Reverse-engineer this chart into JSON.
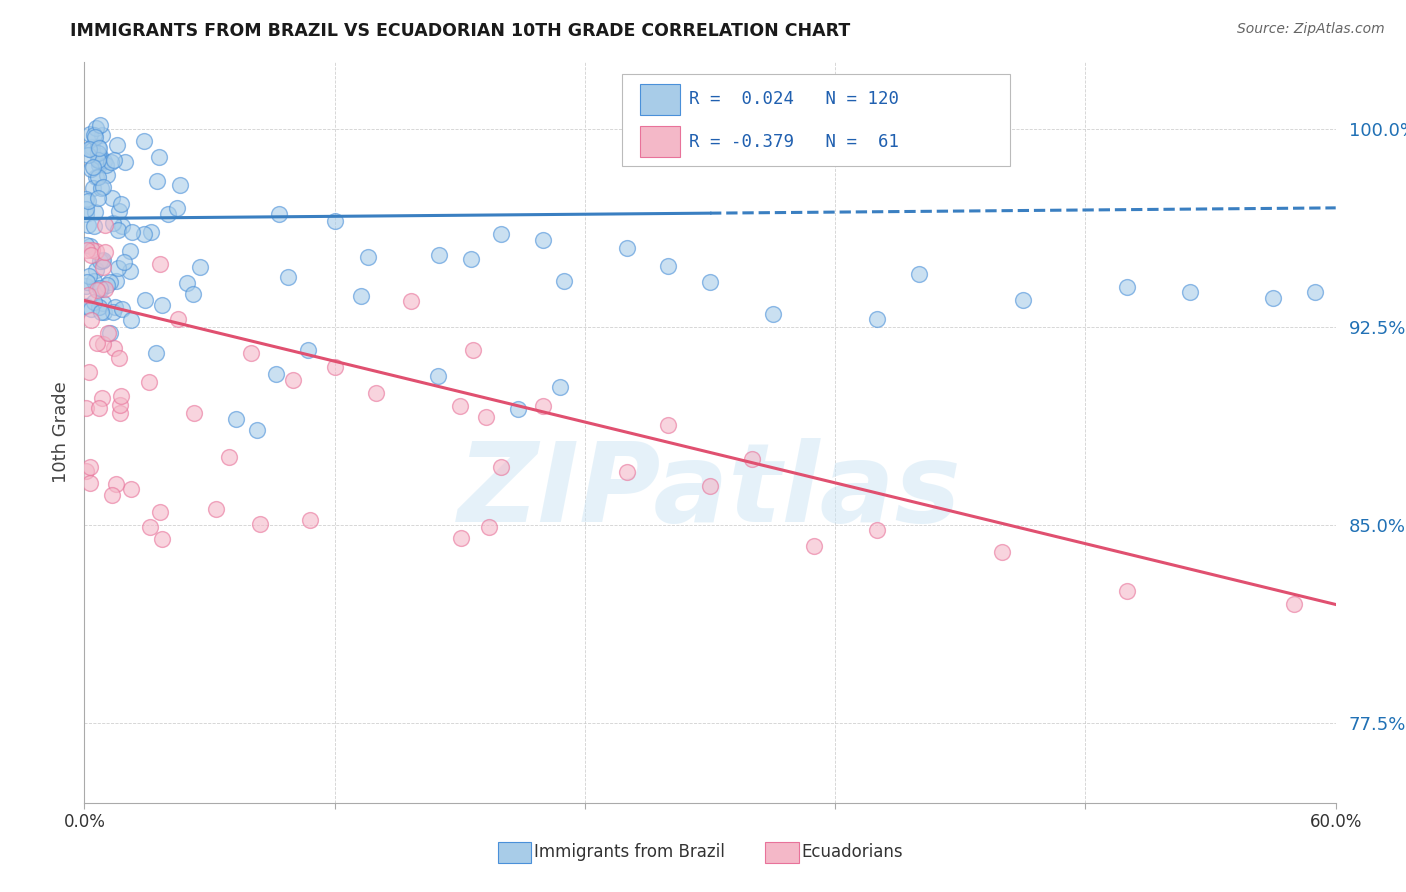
{
  "title": "IMMIGRANTS FROM BRAZIL VS ECUADORIAN 10TH GRADE CORRELATION CHART",
  "source": "Source: ZipAtlas.com",
  "ylabel": "10th Grade",
  "yticks": [
    0.775,
    0.85,
    0.925,
    1.0
  ],
  "ytick_labels": [
    "77.5%",
    "85.0%",
    "92.5%",
    "100.0%"
  ],
  "legend_label1": "Immigrants from Brazil",
  "legend_label2": "Ecuadorians",
  "R1": 0.024,
  "N1": 120,
  "R2": -0.379,
  "N2": 61,
  "blue_color": "#a8cce8",
  "pink_color": "#f4b8c8",
  "blue_edge_color": "#4a90d9",
  "pink_edge_color": "#e8729a",
  "blue_line_color": "#3a7fc1",
  "pink_line_color": "#e05070",
  "watermark": "ZIPatlas",
  "xmin": 0.0,
  "xmax": 0.6,
  "ymin": 0.745,
  "ymax": 1.025,
  "blue_line_y0": 0.966,
  "blue_line_y1": 0.97,
  "blue_solid_xend": 0.3,
  "pink_line_y0": 0.935,
  "pink_line_y1": 0.82
}
